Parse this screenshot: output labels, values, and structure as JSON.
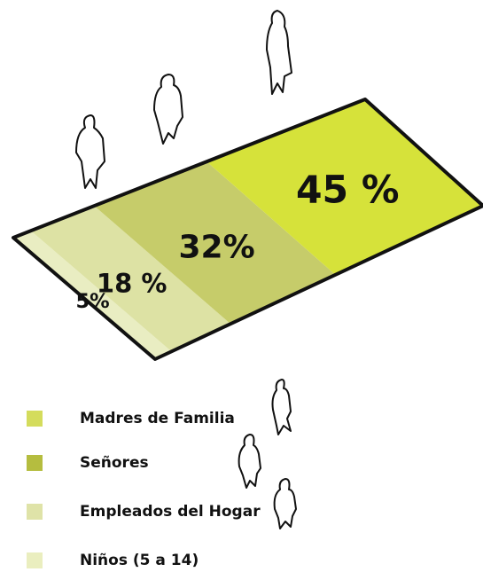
{
  "chart_data": {
    "type": "plane",
    "categories": [
      "Madres de Familia",
      "Señores",
      "Empleados del Hogar",
      "Niños (5 a 14)"
    ],
    "values": [
      45,
      32,
      18,
      5
    ],
    "value_labels": [
      "45 %",
      "32%",
      "18 %",
      "5%"
    ],
    "colors": [
      "#d6e23a",
      "#c6cc6a",
      "#dde2a4",
      "#e9edc2"
    ],
    "legend_colors": [
      "#d4dc5c",
      "#b5bd3f",
      "#dfe3a8",
      "#eaeebf"
    ]
  }
}
